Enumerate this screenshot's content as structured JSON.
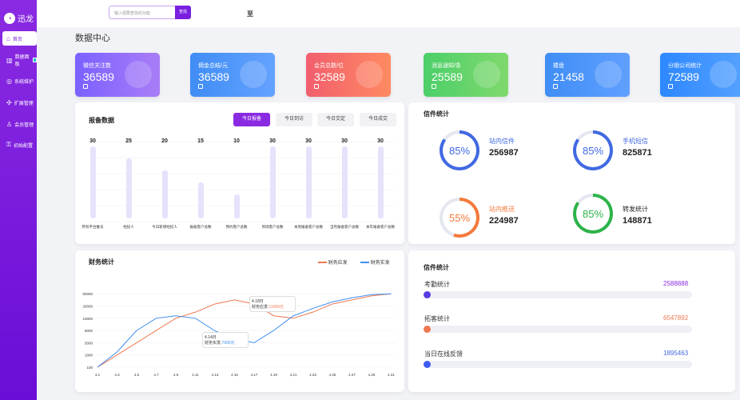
{
  "app": {
    "logo": "迅龙"
  },
  "sidebar": [
    {
      "label": "首页",
      "icon": "home-icon"
    },
    {
      "label": "数据面板",
      "icon": "chart-icon"
    },
    {
      "label": "系统维护",
      "icon": "settings-icon"
    },
    {
      "label": "扩展管理",
      "icon": "extension-icon"
    },
    {
      "label": "会员管理",
      "icon": "member-icon"
    },
    {
      "label": "初始配置",
      "icon": "key-icon"
    }
  ],
  "top": {
    "search_placeholder": "输入需要查找的功能",
    "search_button": "查找",
    "extra_text": "至"
  },
  "page": {
    "title": "数据中心"
  },
  "stats": [
    {
      "label": "微信关注数",
      "value": "36589",
      "color": "#8c5cf6"
    },
    {
      "label": "佣金总结/元",
      "value": "36589",
      "color": "#4f87f8"
    },
    {
      "label": "会员总数/位",
      "value": "32589",
      "color": "#f26a6a"
    },
    {
      "label": "消息通知/条",
      "value": "25589",
      "color": "#4cc36b"
    },
    {
      "label": "楼盘",
      "value": "21458",
      "color": "#4f87f8"
    },
    {
      "label": "分销公司统计",
      "value": "72589",
      "color": "#2d8cff"
    }
  ],
  "report": {
    "title": "报备数据",
    "tabs": [
      "今日报备",
      "今日到访",
      "今日交定",
      "今日成交"
    ]
  },
  "chart_data": [
    {
      "type": "bar",
      "title": "报备数据",
      "categories": [
        "所有平台推号",
        "经纪人",
        "今日新增经纪人",
        "报备客户总数",
        "预约客户总数",
        "到场客户总数",
        "本周报备客户总数",
        "当月报备客户总数",
        "本年报备客户总数"
      ],
      "values": [
        30,
        25,
        20,
        15,
        10,
        30,
        30,
        30,
        30
      ],
      "ylim": [
        0,
        30
      ]
    },
    {
      "type": "line",
      "title": "财务统计",
      "categories": [
        "4.1",
        "4.3",
        "4.5",
        "4.7",
        "4.9",
        "4.11",
        "4.13",
        "4.15",
        "4.17",
        "4.19",
        "4.21",
        "4.23",
        "4.25",
        "4.27",
        "4.29",
        "4.31"
      ],
      "y_ticks": [
        "100",
        "1000",
        "5000",
        "8000",
        "10000",
        "20000",
        "50000"
      ],
      "series": [
        {
          "name": "财务应发",
          "color": "#f07850",
          "values": [
            100,
            1000,
            5000,
            8000,
            10000,
            15000,
            25000,
            35000,
            25000,
            12000,
            10000,
            15000,
            25000,
            35000,
            45000,
            50000
          ]
        },
        {
          "name": "财务实发",
          "color": "#3f8ef2",
          "values": [
            100,
            2000,
            8000,
            10000,
            12000,
            10000,
            7900,
            6000,
            5000,
            8000,
            12000,
            18000,
            30000,
            40000,
            48000,
            50000
          ]
        }
      ]
    }
  ],
  "letters": {
    "title": "信件统计",
    "items": [
      {
        "label": "站内信件",
        "value": "256987",
        "pct": "85%",
        "color": "#4169e1",
        "value_pct": 85
      },
      {
        "label": "手机短信",
        "value": "825871",
        "pct": "85%",
        "color": "#4169e1",
        "value_pct": 85
      },
      {
        "label": "站内推送",
        "value": "224987",
        "pct": "55%",
        "color": "#f47a3c",
        "value_pct": 55
      },
      {
        "label": "转发统计",
        "value": "148871",
        "pct": "85%",
        "color": "#2db34a",
        "value_pct": 85
      }
    ]
  },
  "finance": {
    "title": "财务统计",
    "legend": [
      "财务应发",
      "财务实发"
    ],
    "tip1": {
      "date": "4.18日",
      "label": "财务应发:",
      "value": "11000元"
    },
    "tip2": {
      "date": "4.14日",
      "label": "财务实发:",
      "value": "7900元"
    }
  },
  "letters2": {
    "title": "信件统计",
    "items": [
      {
        "label": "考勤统计",
        "value": "2588888",
        "color": "#8a2be2",
        "dot": "#5a3be2"
      },
      {
        "label": "拓客统计",
        "value": "6547892",
        "color": "#f07850",
        "dot": "#f07850"
      },
      {
        "label": "当日在线反馈",
        "value": "1895463",
        "color": "#4169e1",
        "dot": "#3f5bf2"
      }
    ]
  }
}
